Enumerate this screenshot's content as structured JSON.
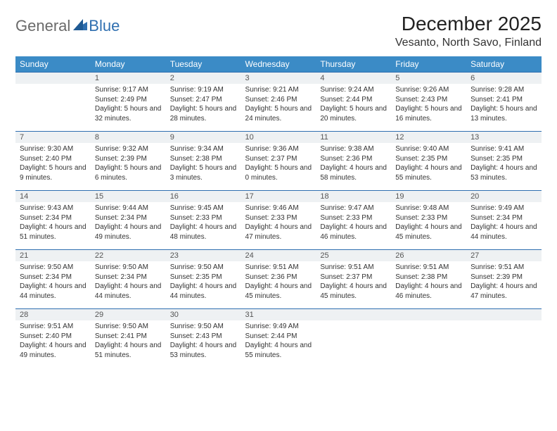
{
  "brand": {
    "part1": "General",
    "part2": "Blue"
  },
  "title": "December 2025",
  "location": "Vesanto, North Savo, Finland",
  "colors": {
    "header_bg": "#3b8bc6",
    "header_text": "#ffffff",
    "rule": "#2f6fb0",
    "daynum_bg": "#eef1f3",
    "logo_gray": "#6a6a6a",
    "logo_blue": "#2f6fb0"
  },
  "typography": {
    "title_fontsize": 28,
    "location_fontsize": 16,
    "weekday_fontsize": 12,
    "body_fontsize": 10
  },
  "weekdays": [
    "Sunday",
    "Monday",
    "Tuesday",
    "Wednesday",
    "Thursday",
    "Friday",
    "Saturday"
  ],
  "weeks": [
    [
      null,
      {
        "n": "1",
        "sr": "9:17 AM",
        "ss": "2:49 PM",
        "dl": "5 hours and 32 minutes."
      },
      {
        "n": "2",
        "sr": "9:19 AM",
        "ss": "2:47 PM",
        "dl": "5 hours and 28 minutes."
      },
      {
        "n": "3",
        "sr": "9:21 AM",
        "ss": "2:46 PM",
        "dl": "5 hours and 24 minutes."
      },
      {
        "n": "4",
        "sr": "9:24 AM",
        "ss": "2:44 PM",
        "dl": "5 hours and 20 minutes."
      },
      {
        "n": "5",
        "sr": "9:26 AM",
        "ss": "2:43 PM",
        "dl": "5 hours and 16 minutes."
      },
      {
        "n": "6",
        "sr": "9:28 AM",
        "ss": "2:41 PM",
        "dl": "5 hours and 13 minutes."
      }
    ],
    [
      {
        "n": "7",
        "sr": "9:30 AM",
        "ss": "2:40 PM",
        "dl": "5 hours and 9 minutes."
      },
      {
        "n": "8",
        "sr": "9:32 AM",
        "ss": "2:39 PM",
        "dl": "5 hours and 6 minutes."
      },
      {
        "n": "9",
        "sr": "9:34 AM",
        "ss": "2:38 PM",
        "dl": "5 hours and 3 minutes."
      },
      {
        "n": "10",
        "sr": "9:36 AM",
        "ss": "2:37 PM",
        "dl": "5 hours and 0 minutes."
      },
      {
        "n": "11",
        "sr": "9:38 AM",
        "ss": "2:36 PM",
        "dl": "4 hours and 58 minutes."
      },
      {
        "n": "12",
        "sr": "9:40 AM",
        "ss": "2:35 PM",
        "dl": "4 hours and 55 minutes."
      },
      {
        "n": "13",
        "sr": "9:41 AM",
        "ss": "2:35 PM",
        "dl": "4 hours and 53 minutes."
      }
    ],
    [
      {
        "n": "14",
        "sr": "9:43 AM",
        "ss": "2:34 PM",
        "dl": "4 hours and 51 minutes."
      },
      {
        "n": "15",
        "sr": "9:44 AM",
        "ss": "2:34 PM",
        "dl": "4 hours and 49 minutes."
      },
      {
        "n": "16",
        "sr": "9:45 AM",
        "ss": "2:33 PM",
        "dl": "4 hours and 48 minutes."
      },
      {
        "n": "17",
        "sr": "9:46 AM",
        "ss": "2:33 PM",
        "dl": "4 hours and 47 minutes."
      },
      {
        "n": "18",
        "sr": "9:47 AM",
        "ss": "2:33 PM",
        "dl": "4 hours and 46 minutes."
      },
      {
        "n": "19",
        "sr": "9:48 AM",
        "ss": "2:33 PM",
        "dl": "4 hours and 45 minutes."
      },
      {
        "n": "20",
        "sr": "9:49 AM",
        "ss": "2:34 PM",
        "dl": "4 hours and 44 minutes."
      }
    ],
    [
      {
        "n": "21",
        "sr": "9:50 AM",
        "ss": "2:34 PM",
        "dl": "4 hours and 44 minutes."
      },
      {
        "n": "22",
        "sr": "9:50 AM",
        "ss": "2:34 PM",
        "dl": "4 hours and 44 minutes."
      },
      {
        "n": "23",
        "sr": "9:50 AM",
        "ss": "2:35 PM",
        "dl": "4 hours and 44 minutes."
      },
      {
        "n": "24",
        "sr": "9:51 AM",
        "ss": "2:36 PM",
        "dl": "4 hours and 45 minutes."
      },
      {
        "n": "25",
        "sr": "9:51 AM",
        "ss": "2:37 PM",
        "dl": "4 hours and 45 minutes."
      },
      {
        "n": "26",
        "sr": "9:51 AM",
        "ss": "2:38 PM",
        "dl": "4 hours and 46 minutes."
      },
      {
        "n": "27",
        "sr": "9:51 AM",
        "ss": "2:39 PM",
        "dl": "4 hours and 47 minutes."
      }
    ],
    [
      {
        "n": "28",
        "sr": "9:51 AM",
        "ss": "2:40 PM",
        "dl": "4 hours and 49 minutes."
      },
      {
        "n": "29",
        "sr": "9:50 AM",
        "ss": "2:41 PM",
        "dl": "4 hours and 51 minutes."
      },
      {
        "n": "30",
        "sr": "9:50 AM",
        "ss": "2:43 PM",
        "dl": "4 hours and 53 minutes."
      },
      {
        "n": "31",
        "sr": "9:49 AM",
        "ss": "2:44 PM",
        "dl": "4 hours and 55 minutes."
      },
      null,
      null,
      null
    ]
  ],
  "labels": {
    "sunrise": "Sunrise:",
    "sunset": "Sunset:",
    "daylight": "Daylight:"
  }
}
